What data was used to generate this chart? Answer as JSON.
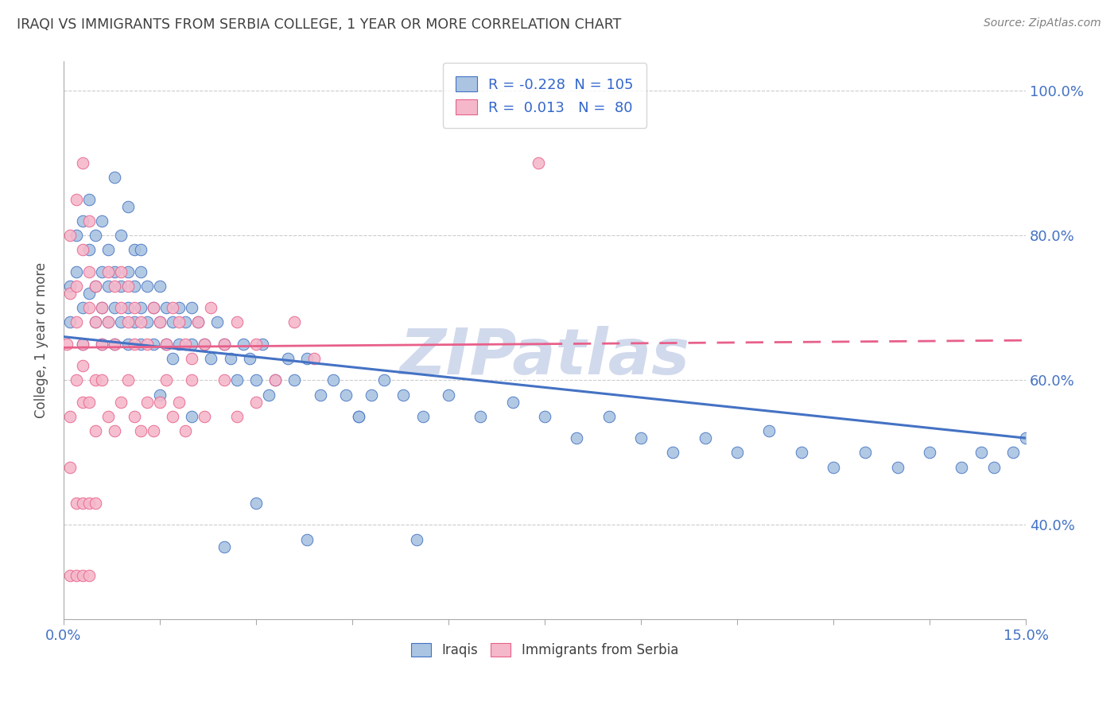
{
  "title": "IRAQI VS IMMIGRANTS FROM SERBIA COLLEGE, 1 YEAR OR MORE CORRELATION CHART",
  "source": "Source: ZipAtlas.com",
  "ylabel": "College, 1 year or more",
  "xmin": 0.0,
  "xmax": 0.15,
  "ymin": 0.27,
  "ymax": 1.04,
  "yticks": [
    0.4,
    0.6,
    0.8,
    1.0
  ],
  "ytick_labels": [
    "40.0%",
    "60.0%",
    "80.0%",
    "100.0%"
  ],
  "legend_R1": "-0.228",
  "legend_N1": "105",
  "legend_R2": "0.013",
  "legend_N2": "80",
  "color_iraqis": "#aac4e2",
  "color_serbia": "#f5b8cb",
  "line_color_iraqis": "#4472c4",
  "line_color_serbia": "#e8608a",
  "background_color": "#ffffff",
  "title_color": "#404040",
  "watermark_color": "#ccd6ea",
  "iraqis_x": [
    0.001,
    0.001,
    0.002,
    0.002,
    0.003,
    0.003,
    0.003,
    0.004,
    0.004,
    0.004,
    0.005,
    0.005,
    0.005,
    0.006,
    0.006,
    0.006,
    0.006,
    0.007,
    0.007,
    0.007,
    0.008,
    0.008,
    0.008,
    0.009,
    0.009,
    0.009,
    0.01,
    0.01,
    0.01,
    0.011,
    0.011,
    0.011,
    0.012,
    0.012,
    0.012,
    0.013,
    0.013,
    0.014,
    0.014,
    0.015,
    0.015,
    0.016,
    0.016,
    0.017,
    0.017,
    0.018,
    0.018,
    0.019,
    0.02,
    0.02,
    0.021,
    0.022,
    0.023,
    0.024,
    0.025,
    0.026,
    0.027,
    0.028,
    0.029,
    0.03,
    0.031,
    0.032,
    0.033,
    0.035,
    0.036,
    0.038,
    0.04,
    0.042,
    0.044,
    0.046,
    0.048,
    0.05,
    0.053,
    0.056,
    0.06,
    0.065,
    0.07,
    0.075,
    0.08,
    0.085,
    0.09,
    0.095,
    0.1,
    0.105,
    0.11,
    0.115,
    0.12,
    0.125,
    0.13,
    0.135,
    0.14,
    0.143,
    0.145,
    0.148,
    0.15,
    0.008,
    0.01,
    0.012,
    0.015,
    0.02,
    0.025,
    0.03,
    0.038,
    0.046,
    0.055
  ],
  "iraqis_y": [
    0.68,
    0.73,
    0.75,
    0.8,
    0.65,
    0.7,
    0.82,
    0.72,
    0.78,
    0.85,
    0.68,
    0.73,
    0.8,
    0.65,
    0.7,
    0.75,
    0.82,
    0.68,
    0.73,
    0.78,
    0.65,
    0.7,
    0.75,
    0.8,
    0.68,
    0.73,
    0.65,
    0.7,
    0.75,
    0.68,
    0.73,
    0.78,
    0.65,
    0.7,
    0.75,
    0.68,
    0.73,
    0.65,
    0.7,
    0.68,
    0.73,
    0.65,
    0.7,
    0.68,
    0.63,
    0.65,
    0.7,
    0.68,
    0.65,
    0.7,
    0.68,
    0.65,
    0.63,
    0.68,
    0.65,
    0.63,
    0.6,
    0.65,
    0.63,
    0.6,
    0.65,
    0.58,
    0.6,
    0.63,
    0.6,
    0.63,
    0.58,
    0.6,
    0.58,
    0.55,
    0.58,
    0.6,
    0.58,
    0.55,
    0.58,
    0.55,
    0.57,
    0.55,
    0.52,
    0.55,
    0.52,
    0.5,
    0.52,
    0.5,
    0.53,
    0.5,
    0.48,
    0.5,
    0.48,
    0.5,
    0.48,
    0.5,
    0.48,
    0.5,
    0.52,
    0.88,
    0.84,
    0.78,
    0.58,
    0.55,
    0.37,
    0.43,
    0.38,
    0.55,
    0.38
  ],
  "serbia_x": [
    0.0005,
    0.001,
    0.001,
    0.002,
    0.002,
    0.002,
    0.003,
    0.003,
    0.003,
    0.004,
    0.004,
    0.004,
    0.005,
    0.005,
    0.005,
    0.006,
    0.006,
    0.007,
    0.007,
    0.008,
    0.008,
    0.009,
    0.009,
    0.01,
    0.01,
    0.011,
    0.011,
    0.012,
    0.013,
    0.014,
    0.015,
    0.016,
    0.017,
    0.018,
    0.019,
    0.02,
    0.021,
    0.022,
    0.023,
    0.025,
    0.027,
    0.03,
    0.033,
    0.036,
    0.039,
    0.001,
    0.002,
    0.003,
    0.003,
    0.004,
    0.005,
    0.006,
    0.007,
    0.008,
    0.009,
    0.01,
    0.011,
    0.012,
    0.013,
    0.014,
    0.015,
    0.016,
    0.017,
    0.018,
    0.019,
    0.02,
    0.022,
    0.025,
    0.027,
    0.03,
    0.001,
    0.002,
    0.003,
    0.004,
    0.005,
    0.074,
    0.001,
    0.002,
    0.003,
    0.004
  ],
  "serbia_y": [
    0.65,
    0.72,
    0.8,
    0.85,
    0.68,
    0.73,
    0.78,
    0.65,
    0.9,
    0.7,
    0.75,
    0.82,
    0.68,
    0.73,
    0.6,
    0.65,
    0.7,
    0.75,
    0.68,
    0.73,
    0.65,
    0.7,
    0.75,
    0.68,
    0.73,
    0.65,
    0.7,
    0.68,
    0.65,
    0.7,
    0.68,
    0.65,
    0.7,
    0.68,
    0.65,
    0.63,
    0.68,
    0.65,
    0.7,
    0.65,
    0.68,
    0.65,
    0.6,
    0.68,
    0.63,
    0.55,
    0.6,
    0.57,
    0.62,
    0.57,
    0.53,
    0.6,
    0.55,
    0.53,
    0.57,
    0.6,
    0.55,
    0.53,
    0.57,
    0.53,
    0.57,
    0.6,
    0.55,
    0.57,
    0.53,
    0.6,
    0.55,
    0.6,
    0.55,
    0.57,
    0.48,
    0.43,
    0.43,
    0.43,
    0.43,
    0.9,
    0.33,
    0.33,
    0.33,
    0.33
  ]
}
